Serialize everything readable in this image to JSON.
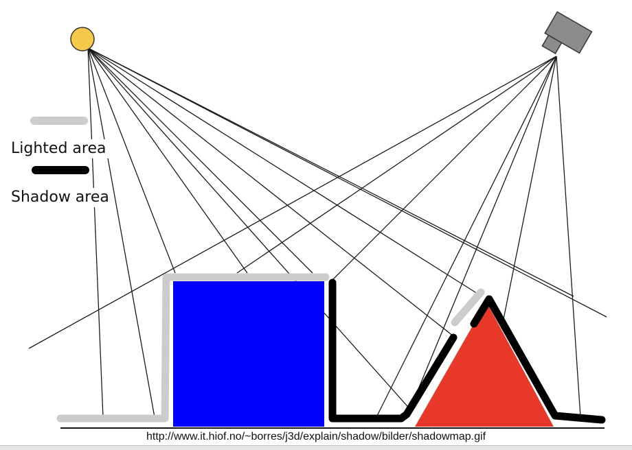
{
  "legend": {
    "lighted_label": "Lighted area",
    "shadow_label": "Shadow area"
  },
  "caption": "http://www.it.hiof.no/~borres/j3d/explain/shadow/bilder/shadowmap.gif",
  "colors": {
    "light_source": "#f5c94a",
    "camera": "#8c8c8c",
    "box": "#0000ff",
    "triangle": "#e8382a",
    "lit_edge": "#cccccc",
    "shadow_edge": "#000000",
    "rays": "#1a1a1a"
  },
  "icons": {
    "light": "sun-light-source-icon",
    "viewer": "camera-icon"
  }
}
